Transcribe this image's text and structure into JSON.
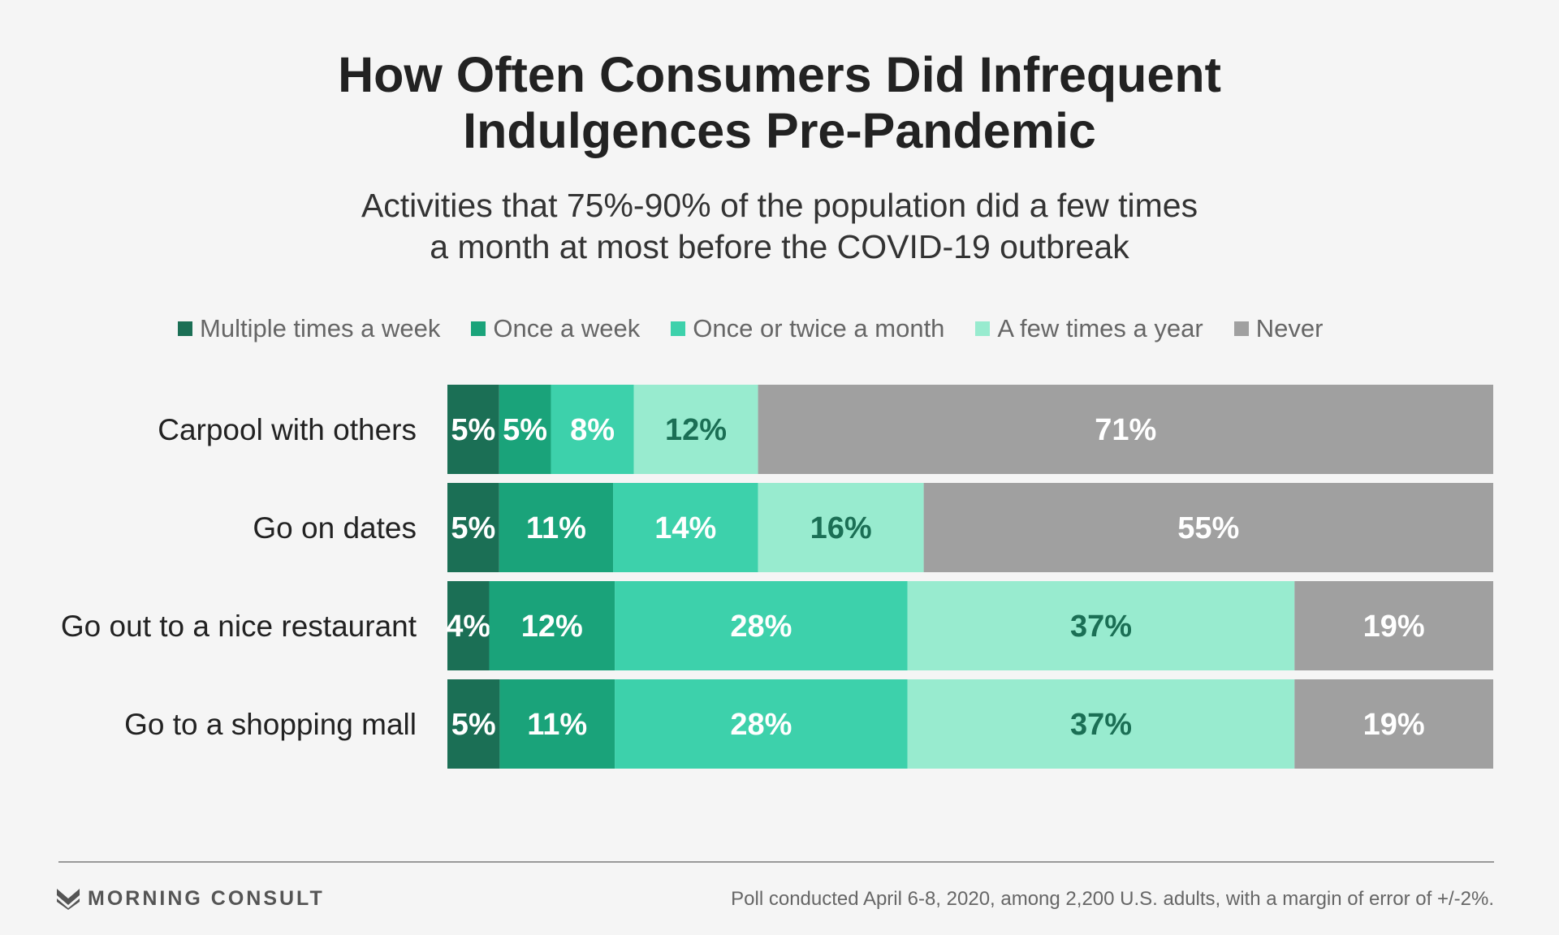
{
  "title_line1": "How Often Consumers Did Infrequent",
  "title_line2": "Indulgences Pre-Pandemic",
  "subtitle_line1": "Activities that 75%-90% of the population did a few times",
  "subtitle_line2": "a month at most before the COVID-19 outbreak",
  "brand": "MORNING CONSULT",
  "footnote": "Poll conducted April 6-8, 2020, among 2,200 U.S. adults, with a margin of error of +/-2%.",
  "chart_data": {
    "type": "bar",
    "orientation": "horizontal",
    "stacked": true,
    "title": "How Often Consumers Did Infrequent Indulgences Pre-Pandemic",
    "subtitle": "Activities that 75%-90% of the population did a few times a month at most before the COVID-19 outbreak",
    "legend_position": "top",
    "grid": false,
    "categories": [
      "Carpool with others",
      "Go on dates",
      "Go out to a nice restaurant",
      "Go to a shopping mall"
    ],
    "series": [
      {
        "name": "Multiple times a week",
        "color": "#1b6f55",
        "label_color": "#ffffff",
        "values": [
          5,
          5,
          4,
          5
        ]
      },
      {
        "name": "Once a week",
        "color": "#1aa37a",
        "label_color": "#ffffff",
        "values": [
          5,
          11,
          12,
          11
        ]
      },
      {
        "name": "Once or twice a month",
        "color": "#3dd1ab",
        "label_color": "#ffffff",
        "values": [
          8,
          14,
          28,
          28
        ]
      },
      {
        "name": "A few times a year",
        "color": "#98ebcf",
        "label_color": "#1b6f55",
        "values": [
          12,
          16,
          37,
          37
        ]
      },
      {
        "name": "Never",
        "color": "#a0a0a0",
        "label_color": "#ffffff",
        "values": [
          71,
          55,
          19,
          19
        ]
      }
    ]
  }
}
